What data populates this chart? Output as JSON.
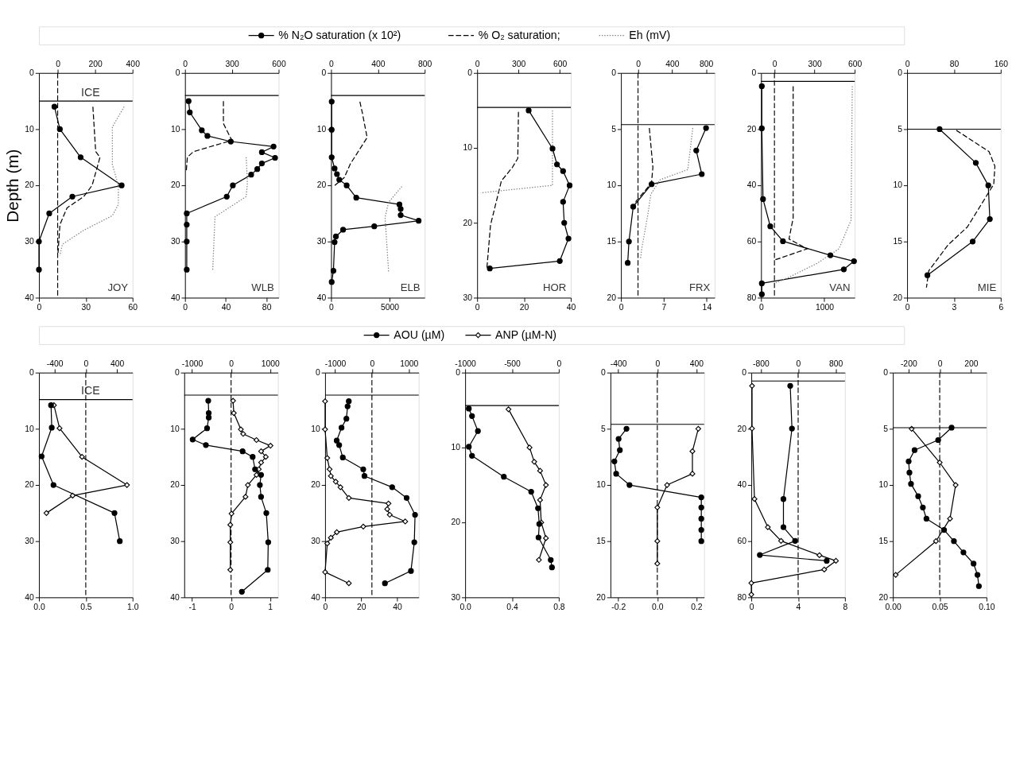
{
  "chart_data": [
    {
      "type": "line",
      "ylabel": "Depth (m)",
      "legend": "top",
      "ylim": [
        40,
        0
      ],
      "yticks": [
        0,
        10,
        20,
        30,
        40
      ],
      "xlim": [
        0,
        60
      ],
      "xticks": [
        0,
        30,
        60
      ],
      "x2lim": [
        -100,
        400
      ],
      "x2ticks": [
        0,
        200,
        400
      ],
      "annotations": [
        "JOY"
      ],
      "ref_lines": [
        {
          "axis": "y",
          "value": 5,
          "label": "ICE",
          "line_style": "solid"
        },
        {
          "axis": "x2",
          "value": 0,
          "line_style": "dashed"
        }
      ],
      "series": [
        {
          "name": "% N₂O saturation (x 10²)",
          "color": "#000000",
          "marker": "circle",
          "line_style": "solid",
          "x": [
            9.9,
            13.4,
            26.7,
            53,
            21.4,
            6.6,
            0,
            0
          ],
          "values": [
            6,
            10,
            15,
            20,
            22,
            25,
            30,
            35
          ]
        },
        {
          "name": "% O₂ saturation;",
          "color": "#000000",
          "axis": "x2",
          "marker": "none",
          "line_style": "dashed",
          "x": [
            188,
            203,
            226,
            184,
            139,
            50,
            12,
            2
          ],
          "values": [
            6,
            14,
            15,
            20,
            22,
            24,
            27,
            32
          ]
        },
        {
          "name": "Eh (mV)",
          "color": "#808080",
          "axis": "x2",
          "marker": "none",
          "line_style": "dotted",
          "x": [
            355,
            292,
            292,
            324,
            324,
            292,
            139,
            25,
            12
          ],
          "values": [
            6,
            9.6,
            16.3,
            20,
            23.4,
            25.4,
            28,
            30.5,
            32.5
          ]
        }
      ]
    },
    {
      "type": "line",
      "ylim": [
        40,
        0
      ],
      "yticks": [
        0,
        10,
        20,
        30,
        40
      ],
      "xlim": [
        0,
        92
      ],
      "xticks": [
        0,
        40,
        80
      ],
      "x2lim": [
        0,
        600
      ],
      "x2ticks": [
        0,
        300,
        600
      ],
      "annotations": [
        "WLB"
      ],
      "ref_lines": [
        {
          "axis": "y",
          "value": 4,
          "line_style": "solid"
        }
      ],
      "series": [
        {
          "color": "#000000",
          "marker": "circle",
          "line_style": "solid",
          "x": [
            3.5,
            4.7,
            16.5,
            22,
            45,
            87,
            75.5,
            88.5,
            75.5,
            71,
            65,
            47,
            41,
            1.7,
            1.7,
            1.7,
            1.7
          ],
          "values": [
            5,
            7,
            10.2,
            11.2,
            12.2,
            13.1,
            14.1,
            15.1,
            16.1,
            17.1,
            18.1,
            20,
            22,
            25,
            27,
            30,
            35
          ]
        },
        {
          "color": "#000000",
          "axis": "x2",
          "marker": "none",
          "line_style": "dashed",
          "x": [
            246,
            246,
            300,
            54,
            15,
            8
          ],
          "values": [
            5,
            9,
            12,
            14,
            15,
            17.5
          ]
        },
        {
          "color": "#808080",
          "axis": "x2",
          "marker": "none",
          "line_style": "dotted",
          "x": [
            392,
            400,
            392,
            192,
            177
          ],
          "values": [
            15,
            19.5,
            22,
            25.6,
            35.3
          ]
        }
      ]
    },
    {
      "type": "line",
      "ylim": [
        40,
        0
      ],
      "yticks": [
        0,
        10,
        20,
        30,
        40
      ],
      "xlim": [
        0,
        8000
      ],
      "xticks": [
        0,
        5000
      ],
      "x2lim": [
        0,
        800
      ],
      "x2ticks": [
        0,
        400,
        800
      ],
      "annotations": [
        "ELB"
      ],
      "ref_lines": [
        {
          "axis": "y",
          "value": 4,
          "line_style": "solid"
        }
      ],
      "series": [
        {
          "color": "#000000",
          "marker": "circle",
          "line_style": "solid",
          "x": [
            50,
            50,
            50,
            300,
            500,
            700,
            1330,
            2150,
            5840,
            5945,
            5945,
            7480,
            3690,
            1025,
            410,
            300,
            200,
            50
          ],
          "values": [
            5.1,
            10.1,
            15,
            17,
            18,
            19,
            20,
            22.2,
            23.4,
            24.2,
            25.3,
            26.3,
            27.3,
            27.9,
            29.1,
            30.1,
            35.2,
            37.2
          ]
        },
        {
          "color": "#000000",
          "axis": "x2",
          "marker": "none",
          "line_style": "dashed",
          "x": [
            246,
            267,
            308,
            164,
            113,
            20
          ],
          "values": [
            5.1,
            7.1,
            11.5,
            16.2,
            18.6,
            20.2
          ]
        },
        {
          "color": "#808080",
          "axis": "x2",
          "marker": "none",
          "line_style": "dotted",
          "x": [
            605,
            492,
            461,
            492
          ],
          "values": [
            20.2,
            23,
            25.7,
            35.6
          ]
        }
      ]
    },
    {
      "type": "line",
      "ylim": [
        30,
        0
      ],
      "yticks": [
        0,
        10,
        20,
        30
      ],
      "xlim": [
        0,
        40
      ],
      "xticks": [
        0,
        20,
        40
      ],
      "x2lim": [
        0,
        680
      ],
      "x2ticks": [
        0,
        300,
        600
      ],
      "annotations": [
        "HOR"
      ],
      "ref_lines": [
        {
          "axis": "y",
          "value": 4.6,
          "line_style": "solid"
        }
      ],
      "series": [
        {
          "color": "#000000",
          "marker": "circle",
          "line_style": "solid",
          "x": [
            22,
            32.2,
            34.1,
            36.7,
            39.5,
            36.7,
            37.2,
            39,
            35.3,
            5.4
          ],
          "values": [
            5,
            10.1,
            12.2,
            13.1,
            15,
            17.2,
            20,
            22.1,
            25.1,
            26.1
          ]
        },
        {
          "color": "#000000",
          "axis": "x2",
          "marker": "none",
          "line_style": "dashed",
          "x": [
            300,
            295,
            256,
            176,
            97,
            71
          ],
          "values": [
            5.2,
            11.4,
            12.6,
            14.4,
            20.3,
            26
          ]
        },
        {
          "color": "#808080",
          "axis": "x2",
          "marker": "none",
          "line_style": "dotted",
          "x": [
            547,
            547,
            26
          ],
          "values": [
            5,
            15,
            16
          ]
        }
      ]
    },
    {
      "type": "line",
      "ylim": [
        20,
        0
      ],
      "yticks": [
        0,
        5,
        10,
        15,
        20
      ],
      "xlim": [
        0,
        15.3
      ],
      "xticks": [
        0,
        7,
        14
      ],
      "x2lim": [
        -200,
        900
      ],
      "x2ticks": [
        0,
        400,
        800
      ],
      "annotations": [
        "FRX"
      ],
      "ref_lines": [
        {
          "axis": "y",
          "value": 4.6,
          "line_style": "solid"
        },
        {
          "axis": "x2",
          "value": 0,
          "line_style": "dashed"
        }
      ],
      "series": [
        {
          "color": "#000000",
          "marker": "circle",
          "line_style": "solid",
          "x": [
            13.9,
            12.3,
            13.2,
            5,
            2,
            1.3,
            1.1
          ],
          "values": [
            4.9,
            6.9,
            9,
            9.9,
            11.9,
            15,
            16.9
          ]
        },
        {
          "color": "#000000",
          "axis": "x2",
          "marker": "none",
          "line_style": "dashed",
          "x": [
            133,
            175,
            158,
            -21,
            -55
          ],
          "values": [
            4.9,
            8.4,
            9.8,
            11.4,
            12
          ]
        },
        {
          "color": "#808080",
          "axis": "x2",
          "marker": "none",
          "line_style": "dotted",
          "x": [
            644,
            585,
            260,
            150,
            116,
            47,
            30
          ],
          "values": [
            4.9,
            8.6,
            9.5,
            10.8,
            12.6,
            15.5,
            16.5
          ]
        }
      ]
    },
    {
      "type": "line",
      "ylim": [
        80,
        0
      ],
      "yticks": [
        0,
        20,
        40,
        60,
        80
      ],
      "xlim": [
        0,
        1480
      ],
      "xticks": [
        0,
        1000
      ],
      "x2lim": [
        -100,
        600
      ],
      "x2ticks": [
        0,
        300,
        600
      ],
      "annotations": [
        "VAN"
      ],
      "ref_lines": [
        {
          "axis": "y",
          "value": 3,
          "line_style": "solid"
        },
        {
          "axis": "x2",
          "value": 0,
          "line_style": "dashed"
        }
      ],
      "series": [
        {
          "color": "#000000",
          "marker": "circle",
          "line_style": "solid",
          "x": [
            12,
            12,
            31,
            146,
            346,
            1096,
            1469,
            1308,
            12,
            12
          ],
          "values": [
            4.7,
            19.7,
            44.9,
            54.6,
            59.9,
            64.9,
            67,
            69.9,
            74.9,
            78.8
          ]
        },
        {
          "color": "#000000",
          "axis": "x2",
          "marker": "none",
          "line_style": "dashed",
          "x": [
            140,
            140,
            109,
            245,
            0
          ],
          "values": [
            4.7,
            51.6,
            59.1,
            62.6,
            66.6
          ]
        },
        {
          "color": "#808080",
          "axis": "x2",
          "marker": "none",
          "line_style": "dotted",
          "x": [
            582,
            573,
            482,
            318,
            100,
            0
          ],
          "values": [
            4.7,
            52.4,
            62.6,
            67.8,
            72.9,
            74.9
          ]
        }
      ]
    },
    {
      "type": "line",
      "ylim": [
        20,
        0
      ],
      "yticks": [
        0,
        5,
        10,
        15,
        20
      ],
      "xlim": [
        0,
        6
      ],
      "xticks": [
        0,
        3,
        6
      ],
      "x2lim": [
        0,
        160
      ],
      "x2ticks": [
        0,
        80,
        160
      ],
      "annotations": [
        "MIE"
      ],
      "ref_lines": [
        {
          "axis": "y",
          "value": 5,
          "line_style": "solid"
        }
      ],
      "series": [
        {
          "color": "#000000",
          "marker": "circle",
          "line_style": "solid",
          "x": [
            2.08,
            4.4,
            5.2,
            5.3,
            4.2,
            1.3
          ],
          "values": [
            5,
            8,
            10,
            13,
            15,
            18
          ]
        },
        {
          "color": "#000000",
          "axis": "x2",
          "marker": "none",
          "line_style": "dashed",
          "x": [
            84,
            140,
            150,
            148,
            103,
            70,
            37,
            33
          ],
          "values": [
            5.1,
            7,
            8.3,
            9.9,
            13.7,
            15.3,
            17.6,
            19.1
          ]
        }
      ]
    },
    {
      "type": "line",
      "legend": "top",
      "ylim": [
        40,
        0
      ],
      "yticks": [
        0,
        10,
        20,
        30,
        40
      ],
      "xlim": [
        0,
        1
      ],
      "xticks": [
        {
          "value": 0,
          "label": "0.0"
        },
        0.5,
        {
          "value": 1,
          "label": "1.0"
        }
      ],
      "x2lim": [
        -600,
        600
      ],
      "x2ticks": [
        -400,
        0,
        400
      ],
      "ref_lines": [
        {
          "axis": "y",
          "value": 4.8,
          "label": "ICE",
          "line_style": "solid"
        },
        {
          "axis": "x2",
          "value": 0,
          "line_style": "dashed"
        }
      ],
      "series": [
        {
          "name": "AOU (µM)",
          "color": "#000000",
          "axis": "x2",
          "marker": "circle",
          "line_style": "solid",
          "x": [
            -445,
            -436,
            -566,
            -414,
            368,
            436
          ],
          "values": [
            5.8,
            9.8,
            14.9,
            20,
            25,
            30
          ]
        },
        {
          "name": "ANP (µM-N)",
          "color": "#000000",
          "marker": "diamond",
          "line_style": "solid",
          "x": [
            0.16,
            0.22,
            0.46,
            0.94,
            0.36,
            0.08
          ],
          "values": [
            5.8,
            9.9,
            15,
            20,
            21.9,
            25
          ]
        }
      ]
    },
    {
      "type": "line",
      "ylim": [
        40,
        0
      ],
      "yticks": [
        0,
        10,
        20,
        30,
        40
      ],
      "xlim": [
        -1.2,
        1.2
      ],
      "xticks": [
        -1,
        0,
        1
      ],
      "x2lim": [
        -1200,
        1200
      ],
      "x2ticks": [
        -1000,
        0,
        1000
      ],
      "ref_lines": [
        {
          "axis": "y",
          "value": 4,
          "line_style": "solid"
        },
        {
          "axis": "x2",
          "value": 0,
          "line_style": "dashed"
        }
      ],
      "series": [
        {
          "color": "#000000",
          "axis": "x2",
          "marker": "circle",
          "line_style": "solid",
          "x": [
            -585,
            -573,
            -573,
            -616,
            -985,
            -646,
            295,
            553,
            615,
            768,
            738,
            768,
            903,
            952,
            940,
            276
          ],
          "values": [
            5,
            7.2,
            8,
            9.9,
            11.9,
            12.9,
            14,
            15,
            17.2,
            18.2,
            20,
            22.1,
            25,
            30.2,
            35.1,
            39
          ]
        },
        {
          "color": "#000000",
          "marker": "diamond",
          "line_style": "solid",
          "x": [
            0.05,
            0.07,
            0.25,
            0.31,
            0.65,
            1.01,
            0.77,
            0.89,
            0.77,
            0.71,
            0.65,
            0.43,
            0.37,
            0.01,
            -0.02,
            -0.02,
            -0.02
          ],
          "values": [
            5,
            7.2,
            10.1,
            10.9,
            12,
            13,
            14,
            15,
            16,
            17.2,
            18.2,
            20,
            22.1,
            25.1,
            27.1,
            30.2,
            35.1
          ]
        }
      ]
    },
    {
      "type": "line",
      "ylim": [
        40,
        0
      ],
      "yticks": [
        0,
        10,
        20,
        30,
        40
      ],
      "xlim": [
        0,
        52
      ],
      "xticks": [
        0,
        20,
        40
      ],
      "x2lim": [
        -1270,
        1270
      ],
      "x2ticks": [
        -1000,
        0,
        1000
      ],
      "ref_lines": [
        {
          "axis": "y",
          "value": 4,
          "line_style": "solid"
        },
        {
          "axis": "x2",
          "value": 0,
          "line_style": "dashed"
        }
      ],
      "series": [
        {
          "color": "#000000",
          "axis": "x2",
          "marker": "circle",
          "line_style": "solid",
          "x": [
            -627,
            -660,
            -692,
            -824,
            -955,
            -888,
            -790,
            -235,
            -202,
            549,
            941,
            1170,
            1150,
            1059,
            353
          ],
          "values": [
            5.1,
            6,
            8.2,
            9.8,
            12.1,
            12.9,
            15.1,
            17.2,
            18.4,
            20.4,
            22.3,
            25.3,
            30.2,
            35.3,
            37.5
          ]
        },
        {
          "color": "#000000",
          "marker": "diamond",
          "line_style": "solid",
          "x": [
            0,
            0,
            1.2,
            2.5,
            3.2,
            5.9,
            8.5,
            13.2,
            35.2,
            34.5,
            35.9,
            44.5,
            21.2,
            6.5,
            3.2,
            1.2,
            0,
            13.2
          ],
          "values": [
            5.1,
            10.1,
            15.2,
            17.2,
            18.4,
            19.4,
            20.4,
            22.3,
            23.3,
            24.3,
            25.3,
            26.5,
            27.4,
            28.4,
            29.4,
            30.4,
            35.5,
            37.5
          ]
        }
      ]
    },
    {
      "type": "line",
      "ylim": [
        30,
        0
      ],
      "yticks": [
        0,
        10,
        20,
        30
      ],
      "xlim": [
        0,
        0.8
      ],
      "xticks": [
        {
          "value": 0,
          "label": "0.0"
        },
        0.4,
        0.8
      ],
      "x2lim": [
        -1000,
        0
      ],
      "x2ticks": [
        -1000,
        -500,
        0
      ],
      "ref_lines": [
        {
          "axis": "y",
          "value": 4.4,
          "line_style": "solid"
        }
      ],
      "series": [
        {
          "color": "#000000",
          "axis": "x2",
          "marker": "circle",
          "line_style": "solid",
          "x": [
            -961,
            -927,
            -864,
            -961,
            -927,
            -587,
            -295,
            -222,
            -209,
            -217,
            -86,
            -73
          ],
          "values": [
            4.8,
            5.8,
            7.8,
            9.9,
            11.1,
            13.9,
            15.9,
            18.1,
            20.2,
            22,
            25,
            26
          ]
        },
        {
          "color": "#000000",
          "marker": "diamond",
          "line_style": "solid",
          "x": [
            0.37,
            0.55,
            0.59,
            0.64,
            0.69,
            0.64,
            0.65,
            0.69,
            0.63
          ],
          "values": [
            4.9,
            10,
            11.9,
            13.1,
            15,
            17,
            20,
            22.1,
            25
          ]
        }
      ]
    },
    {
      "type": "line",
      "ylim": [
        20,
        0
      ],
      "yticks": [
        0,
        5,
        10,
        15,
        20
      ],
      "xlim": [
        -0.24,
        0.24
      ],
      "xticks": [
        -0.2,
        {
          "value": 0,
          "label": "0.0"
        },
        0.2
      ],
      "x2lim": [
        -480,
        480
      ],
      "x2ticks": [
        -400,
        0,
        400
      ],
      "ref_lines": [
        {
          "axis": "y",
          "value": 4.6,
          "line_style": "solid"
        },
        {
          "axis": "x2",
          "value": 0,
          "line_style": "dashed"
        }
      ],
      "series": [
        {
          "color": "#000000",
          "axis": "x2",
          "marker": "circle",
          "line_style": "solid",
          "x": [
            -316,
            -397,
            -384,
            -440,
            -422,
            -285,
            451,
            451,
            451,
            451,
            451
          ],
          "values": [
            5,
            5.9,
            6.9,
            7.9,
            9,
            10,
            11.1,
            12,
            13,
            14,
            15
          ]
        },
        {
          "color": "#000000",
          "marker": "diamond",
          "line_style": "solid",
          "x": [
            0.21,
            0.18,
            0.18,
            0.05,
            0,
            0,
            0
          ],
          "values": [
            5,
            7,
            9,
            10,
            12,
            15,
            17
          ]
        }
      ]
    },
    {
      "type": "line",
      "ylim": [
        80,
        0
      ],
      "yticks": [
        0,
        20,
        40,
        60,
        80
      ],
      "xlim": [
        0,
        8
      ],
      "xticks": [
        0,
        4,
        8
      ],
      "x2lim": [
        -1000,
        1000
      ],
      "x2ticks": [
        -800,
        0,
        800
      ],
      "ref_lines": [
        {
          "axis": "y",
          "value": 3,
          "line_style": "solid"
        },
        {
          "axis": "x2",
          "value": 0,
          "line_style": "dashed"
        }
      ],
      "series": [
        {
          "color": "#000000",
          "axis": "x2",
          "marker": "circle",
          "line_style": "solid",
          "x": [
            -169,
            -132,
            -314,
            -314,
            -65,
            -818,
            610
          ],
          "values": [
            4.7,
            19.9,
            45,
            55,
            59.9,
            64.9,
            67
          ]
        },
        {
          "color": "#000000",
          "marker": "diamond",
          "line_style": "solid",
          "x": [
            0.06,
            0.06,
            0.27,
            1.41,
            2.54,
            5.82,
            7.23,
            6.23,
            0,
            0
          ],
          "values": [
            4.7,
            19.9,
            45,
            55,
            59.9,
            65,
            67,
            70.1,
            74.9,
            79
          ]
        }
      ]
    },
    {
      "type": "line",
      "ylim": [
        20,
        0
      ],
      "yticks": [
        0,
        5,
        10,
        15,
        20
      ],
      "xlim": [
        0,
        0.1
      ],
      "xticks": [
        {
          "value": 0,
          "label": "0.00"
        },
        0.05,
        {
          "value": 0.1,
          "label": "0.10"
        }
      ],
      "x2lim": [
        -300,
        300
      ],
      "x2ticks": [
        -200,
        0,
        200
      ],
      "ref_lines": [
        {
          "axis": "y",
          "value": 4.9,
          "line_style": "solid"
        },
        {
          "axis": "x2",
          "value": 0,
          "line_style": "dashed"
        }
      ],
      "series": [
        {
          "color": "#000000",
          "axis": "x2",
          "marker": "circle",
          "line_style": "solid",
          "x": [
            76,
            -10,
            -161,
            -199,
            -194,
            -184,
            -138,
            -108,
            -85,
            28,
            91,
            152,
            217,
            242,
            251
          ],
          "values": [
            4.9,
            6,
            6.9,
            7.9,
            8.9,
            9.9,
            11,
            12,
            13,
            14,
            15,
            16,
            17,
            18,
            19
          ]
        },
        {
          "color": "#000000",
          "marker": "diamond",
          "line_style": "solid",
          "x": [
            0.02,
            0.05,
            0.067,
            0.061,
            0.046,
            0.003
          ],
          "values": [
            5,
            8,
            10,
            13,
            15,
            18
          ]
        }
      ]
    }
  ]
}
